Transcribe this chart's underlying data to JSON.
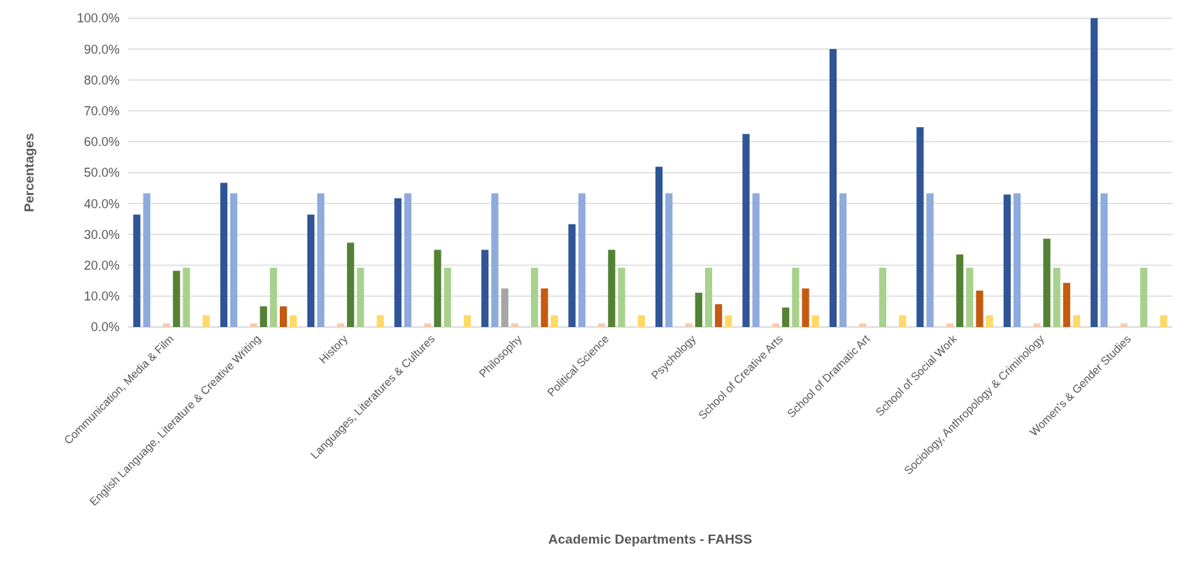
{
  "chart_data": {
    "type": "bar",
    "xlabel": "Academic Departments - FAHSS",
    "ylabel": "Percentages",
    "categories": [
      "Communication, Media & Film",
      "English Language, Literature & Creative Writing",
      "History",
      "Languages, Literatures & Cultures",
      "Philosophy",
      "Political Science",
      "Psychology",
      "School of Creative Arts",
      "School of Dramatic Art",
      "School of Social Work",
      "Sociology, Anthropology & Criminology",
      "Women's & Gender Studies"
    ],
    "series": [
      {
        "color": "#2f5597",
        "values": [
          36.4,
          46.7,
          36.4,
          41.7,
          25.0,
          33.3,
          51.9,
          62.5,
          90.0,
          64.7,
          42.9,
          100.0
        ]
      },
      {
        "color": "#8faadc",
        "values": [
          43.3,
          43.3,
          43.3,
          43.3,
          43.3,
          43.3,
          43.3,
          43.3,
          43.3,
          43.3,
          43.3,
          43.3
        ]
      },
      {
        "color": "#a5a5a5",
        "values": [
          null,
          null,
          null,
          null,
          12.5,
          null,
          null,
          null,
          null,
          null,
          null,
          null
        ]
      },
      {
        "color": "#f8cbad",
        "values": [
          1.2,
          1.2,
          1.2,
          1.2,
          1.2,
          1.2,
          1.2,
          1.2,
          1.2,
          1.2,
          1.2,
          1.2
        ]
      },
      {
        "color": "#548235",
        "values": [
          18.2,
          6.7,
          27.3,
          25.0,
          null,
          25.0,
          11.1,
          6.3,
          null,
          23.5,
          28.6,
          null
        ]
      },
      {
        "color": "#a9d18e",
        "values": [
          19.2,
          19.2,
          19.2,
          19.2,
          19.2,
          19.2,
          19.2,
          19.2,
          19.2,
          19.2,
          19.2,
          19.2
        ]
      },
      {
        "color": "#c55a11",
        "values": [
          null,
          6.7,
          null,
          null,
          12.5,
          null,
          7.4,
          12.5,
          null,
          11.8,
          14.3,
          null
        ]
      },
      {
        "color": "#ffd966",
        "values": [
          3.8,
          3.8,
          3.8,
          3.8,
          3.8,
          3.8,
          3.8,
          3.8,
          3.8,
          3.8,
          3.8,
          3.8
        ]
      }
    ],
    "ylim": [
      0,
      100
    ],
    "yticks": [
      {
        "value": 0,
        "label": "0.0%"
      },
      {
        "value": 10,
        "label": "10.0%"
      },
      {
        "value": 20,
        "label": "20.0%"
      },
      {
        "value": 30,
        "label": "30.0%"
      },
      {
        "value": 40,
        "label": "40.0%"
      },
      {
        "value": 50,
        "label": "50.0%"
      },
      {
        "value": 60,
        "label": "60.0%"
      },
      {
        "value": 70,
        "label": "70.0%"
      },
      {
        "value": 80,
        "label": "80.0%"
      },
      {
        "value": 90,
        "label": "90.0%"
      },
      {
        "value": 100,
        "label": "100.0%"
      }
    ],
    "grid": "y"
  }
}
